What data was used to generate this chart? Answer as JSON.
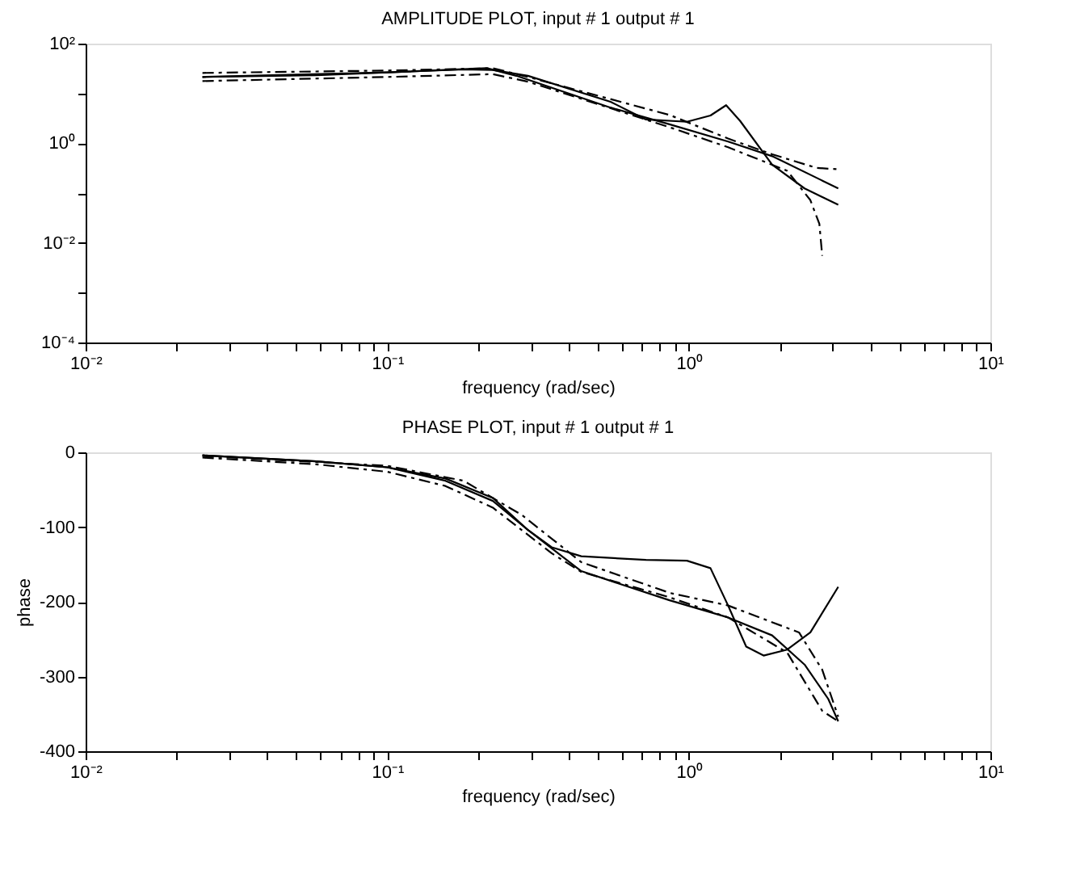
{
  "chart_data": [
    {
      "type": "line",
      "title": "AMPLITUDE PLOT, input # 1 output # 1",
      "xlabel": "frequency (rad/sec)",
      "log": "xy",
      "grid": false,
      "legend": false,
      "marker": "none",
      "xlim": [
        0.01,
        10
      ],
      "xticks": [
        {
          "value": 0.01,
          "label": "10⁻²"
        },
        {
          "value": 0.02,
          "label": null
        },
        {
          "value": 0.03,
          "label": null
        },
        {
          "value": 0.04,
          "label": null
        },
        {
          "value": 0.05,
          "label": null
        },
        {
          "value": 0.06,
          "label": null
        },
        {
          "value": 0.07,
          "label": null
        },
        {
          "value": 0.08,
          "label": null
        },
        {
          "value": 0.09,
          "label": null
        },
        {
          "value": 0.1,
          "label": "10⁻¹"
        },
        {
          "value": 0.2,
          "label": null
        },
        {
          "value": 0.3,
          "label": null
        },
        {
          "value": 0.4,
          "label": null
        },
        {
          "value": 0.5,
          "label": null
        },
        {
          "value": 0.6,
          "label": null
        },
        {
          "value": 0.7,
          "label": null
        },
        {
          "value": 0.8,
          "label": null
        },
        {
          "value": 0.9,
          "label": null
        },
        {
          "value": 1,
          "label": "10⁰"
        },
        {
          "value": 2,
          "label": null
        },
        {
          "value": 3,
          "label": null
        },
        {
          "value": 4,
          "label": null
        },
        {
          "value": 5,
          "label": null
        },
        {
          "value": 6,
          "label": null
        },
        {
          "value": 7,
          "label": null
        },
        {
          "value": 8,
          "label": null
        },
        {
          "value": 9,
          "label": null
        },
        {
          "value": 10,
          "label": "10¹"
        }
      ],
      "ylim": [
        0.0001,
        100
      ],
      "yticks": [
        {
          "value": 0.0001,
          "label": "10⁻⁴"
        },
        {
          "value": 0.001,
          "label": null
        },
        {
          "value": 0.01,
          "label": "10⁻²"
        },
        {
          "value": 0.1,
          "label": null
        },
        {
          "value": 1,
          "label": "10⁰"
        },
        {
          "value": 10,
          "label": null
        },
        {
          "value": 100,
          "label": "10²"
        }
      ],
      "series": [
        {
          "color": "#000000",
          "line_style": "solid",
          "x": [
            0.0244,
            0.0582,
            0.1,
            0.179,
            0.224,
            0.293,
            0.55,
            0.721,
            0.986,
            1.18,
            1.33,
            1.48,
            1.89,
            2.42,
            3.13
          ],
          "values": [
            21.4,
            23.2,
            26.5,
            30.3,
            29.5,
            22.6,
            6.8,
            3.0,
            2.7,
            3.6,
            5.8,
            2.8,
            0.37,
            0.124,
            0.058
          ]
        },
        {
          "color": "#000000",
          "line_style": "solid",
          "x": [
            0.0244,
            0.1,
            0.214,
            0.268,
            0.55,
            0.863,
            1.35,
            1.89,
            3.13
          ],
          "values": [
            21.4,
            26.5,
            32.1,
            22.6,
            5.2,
            2.4,
            1.08,
            0.55,
            0.124
          ]
        },
        {
          "color": "#000000",
          "line_style": "dashed",
          "x": [
            0.0244,
            0.1,
            0.224,
            0.293,
            0.863,
            1.35,
            1.89,
            2.65,
            3.13
          ],
          "values": [
            25.8,
            28.8,
            32.1,
            21.4,
            3.7,
            1.24,
            0.6,
            0.32,
            0.3
          ]
        },
        {
          "color": "#000000",
          "line_style": "dashed",
          "x": [
            0.0244,
            0.1,
            0.224,
            0.293,
            0.863,
            1.35,
            2.12,
            2.53,
            2.71,
            2.77
          ],
          "values": [
            17.7,
            21.4,
            24.4,
            17.2,
            2.1,
            0.83,
            0.28,
            0.072,
            0.024,
            0.0055
          ]
        }
      ]
    },
    {
      "type": "line",
      "title": "PHASE PLOT, input # 1 output # 1",
      "xlabel": "frequency (rad/sec)",
      "ylabel": "phase",
      "log": "x",
      "grid": false,
      "legend": false,
      "marker": "none",
      "xlim": [
        0.01,
        10
      ],
      "xticks": [
        {
          "value": 0.01,
          "label": "10⁻²"
        },
        {
          "value": 0.02,
          "label": null
        },
        {
          "value": 0.03,
          "label": null
        },
        {
          "value": 0.04,
          "label": null
        },
        {
          "value": 0.05,
          "label": null
        },
        {
          "value": 0.06,
          "label": null
        },
        {
          "value": 0.07,
          "label": null
        },
        {
          "value": 0.08,
          "label": null
        },
        {
          "value": 0.09,
          "label": null
        },
        {
          "value": 0.1,
          "label": "10⁻¹"
        },
        {
          "value": 0.2,
          "label": null
        },
        {
          "value": 0.3,
          "label": null
        },
        {
          "value": 0.4,
          "label": null
        },
        {
          "value": 0.5,
          "label": null
        },
        {
          "value": 0.6,
          "label": null
        },
        {
          "value": 0.7,
          "label": null
        },
        {
          "value": 0.8,
          "label": null
        },
        {
          "value": 0.9,
          "label": null
        },
        {
          "value": 1,
          "label": "10⁰"
        },
        {
          "value": 2,
          "label": null
        },
        {
          "value": 3,
          "label": null
        },
        {
          "value": 4,
          "label": null
        },
        {
          "value": 5,
          "label": null
        },
        {
          "value": 6,
          "label": null
        },
        {
          "value": 7,
          "label": null
        },
        {
          "value": 8,
          "label": null
        },
        {
          "value": 9,
          "label": null
        },
        {
          "value": 10,
          "label": "10¹"
        }
      ],
      "ylim": [
        -400,
        0
      ],
      "yticks": [
        -400,
        -300,
        -200,
        -100,
        0
      ],
      "series": [
        {
          "color": "#000000",
          "line_style": "solid",
          "x": [
            0.0244,
            0.0582,
            0.1,
            0.156,
            0.224,
            0.293,
            0.351,
            0.44,
            0.721,
            0.986,
            1.18,
            1.35,
            1.55,
            1.77,
            2.12,
            2.53,
            3.13
          ],
          "values": [
            -4,
            -12,
            -20,
            -38,
            -65,
            -104,
            -127,
            -139,
            -144,
            -145,
            -155,
            -205,
            -260,
            -272,
            -264,
            -241,
            -180
          ]
        },
        {
          "color": "#000000",
          "line_style": "solid",
          "x": [
            0.0244,
            0.0582,
            0.1,
            0.156,
            0.224,
            0.293,
            0.44,
            0.863,
            1.35,
            1.89,
            2.42,
            2.9,
            3.13
          ],
          "values": [
            -4,
            -12,
            -20,
            -35,
            -61,
            -104,
            -159,
            -198,
            -221,
            -245,
            -284,
            -330,
            -360
          ]
        },
        {
          "color": "#000000",
          "line_style": "dashed",
          "x": [
            0.0244,
            0.1,
            0.179,
            0.28,
            0.44,
            0.863,
            1.35,
            2.32,
            2.77,
            3.13
          ],
          "values": [
            -5,
            -18,
            -38,
            -84,
            -147,
            -188,
            -205,
            -241,
            -291,
            -354
          ]
        },
        {
          "color": "#000000",
          "line_style": "dashed",
          "x": [
            0.0244,
            0.0582,
            0.1,
            0.156,
            0.224,
            0.351,
            0.44,
            0.863,
            1.35,
            2.12,
            2.77,
            3.13
          ],
          "values": [
            -7,
            -16,
            -26,
            -45,
            -74,
            -135,
            -160,
            -194,
            -221,
            -268,
            -346,
            -360
          ]
        }
      ]
    }
  ]
}
